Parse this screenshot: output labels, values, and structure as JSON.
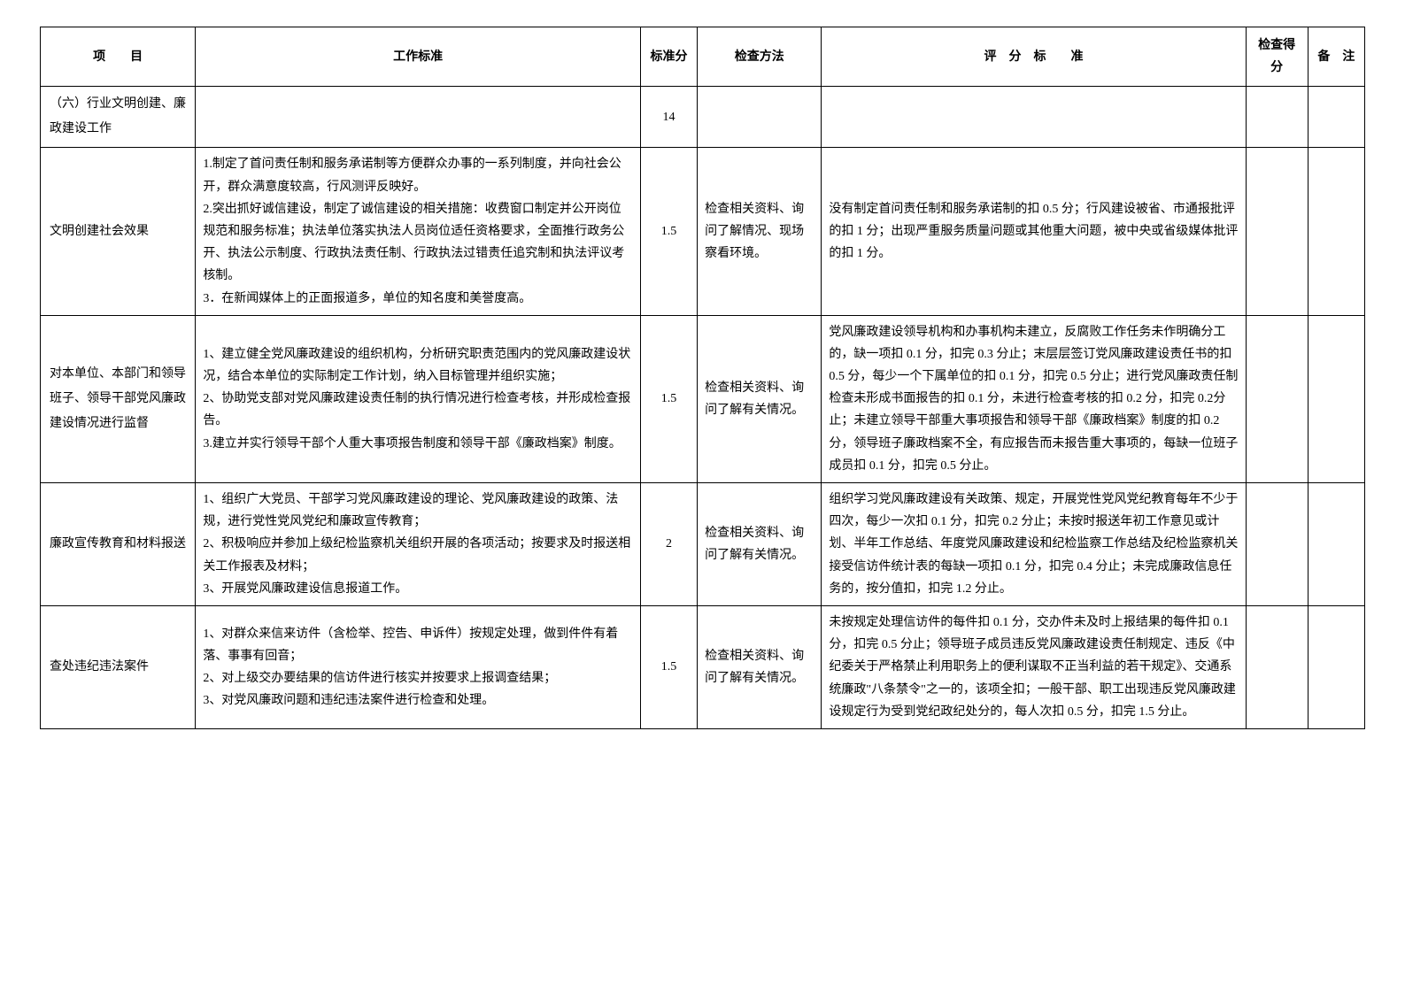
{
  "headers": {
    "item": "项　　目",
    "standard": "工作标准",
    "score": "标准分",
    "method": "检查方法",
    "criteria": "评　分　标　　准",
    "result": "检查得分",
    "remark": "备　注"
  },
  "rows": [
    {
      "item": "（六）行业文明创建、廉政建设工作",
      "standard": "",
      "score": "14",
      "method": "",
      "criteria": "",
      "result": "",
      "remark": ""
    },
    {
      "item": "文明创建社会效果",
      "standard": "1.制定了首问责任制和服务承诺制等方便群众办事的一系列制度，并向社会公开，群众满意度较高，行风测评反映好。\n2.突出抓好诚信建设，制定了诚信建设的相关措施：收费窗口制定并公开岗位规范和服务标准；执法单位落实执法人员岗位适任资格要求，全面推行政务公开、执法公示制度、行政执法责任制、行政执法过错责任追究制和执法评议考核制。\n3．在新闻媒体上的正面报道多，单位的知名度和美誉度高。",
      "score": "1.5",
      "method": "检查相关资料、询问了解情况、现场察看环境。",
      "criteria": "没有制定首问责任制和服务承诺制的扣 0.5 分；行风建设被省、市通报批评的扣 1 分；出现严重服务质量问题或其他重大问题，被中央或省级媒体批评的扣 1 分。",
      "result": "",
      "remark": ""
    },
    {
      "item": "对本单位、本部门和领导班子、领导干部党风廉政建设情况进行监督",
      "standard": "1、建立健全党风廉政建设的组织机构，分析研究职责范围内的党风廉政建设状况，结合本单位的实际制定工作计划，纳入目标管理并组织实施；\n2、协助党支部对党风廉政建设责任制的执行情况进行检查考核，并形成检查报告。\n3.建立并实行领导干部个人重大事项报告制度和领导干部《廉政档案》制度。",
      "score": "1.5",
      "method": "检查相关资料、询问了解有关情况。",
      "criteria": "党风廉政建设领导机构和办事机构未建立，反腐败工作任务未作明确分工的，缺一项扣 0.1 分，扣完 0.3 分止；末层层签订党风廉政建设责任书的扣 0.5 分，每少一个下属单位的扣 0.1 分，扣完 0.5 分止；进行党风廉政责任制检查未形成书面报告的扣 0.1 分，未进行检查考核的扣 0.2 分，扣完 0.2分止；未建立领导干部重大事项报告和领导干部《廉政档案》制度的扣 0.2 分，领导班子廉政档案不全，有应报告而未报告重大事项的，每缺一位班子成员扣 0.1 分，扣完 0.5 分止。",
      "result": "",
      "remark": ""
    },
    {
      "item": "廉政宣传教育和材料报送",
      "standard": "1、组织广大党员、干部学习党风廉政建设的理论、党风廉政建设的政策、法规，进行党性党风党纪和廉政宣传教育；\n2、积极响应并参加上级纪检监察机关组织开展的各项活动；按要求及时报送相关工作报表及材料；\n3、开展党风廉政建设信息报道工作。",
      "score": "2",
      "method": "检查相关资料、询问了解有关情况。",
      "criteria": "组织学习党风廉政建设有关政策、规定，开展党性党风党纪教育每年不少于四次，每少一次扣 0.1 分，扣完 0.2 分止；未按时报送年初工作意见或计划、半年工作总结、年度党风廉政建设和纪检监察工作总结及纪检监察机关接受信访件统计表的每缺一项扣 0.1 分，扣完 0.4 分止；未完成廉政信息任务的，按分值扣，扣完 1.2 分止。",
      "result": "",
      "remark": ""
    },
    {
      "item": "查处违纪违法案件",
      "standard": "1、对群众来信来访件（含检举、控告、申诉件）按规定处理，做到件件有着落、事事有回音；\n2、对上级交办要结果的信访件进行核实并按要求上报调查结果；\n3、对党风廉政问题和违纪违法案件进行检查和处理。",
      "score": "1.5",
      "method": "检查相关资料、询问了解有关情况。",
      "criteria": "未按规定处理信访件的每件扣 0.1 分，交办件未及时上报结果的每件扣 0.1 分，扣完 0.5 分止；领导班子成员违反党风廉政建设责任制规定、违反《中纪委关于严格禁止利用职务上的便利谋取不正当利益的若干规定》、交通系统廉政\"八条禁令\"之一的，该项全扣；一般干部、职工出现违反党风廉政建设规定行为受到党纪政纪处分的，每人次扣 0.5 分，扣完 1.5 分止。",
      "result": "",
      "remark": ""
    }
  ]
}
